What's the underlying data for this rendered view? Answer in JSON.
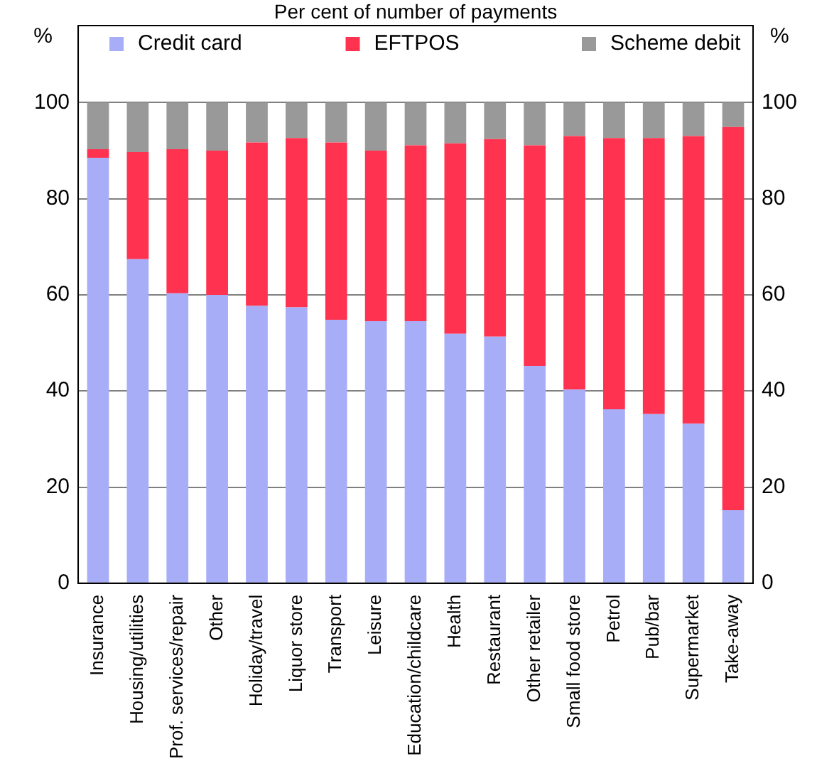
{
  "chart_data": {
    "type": "bar",
    "title": "Per cent of number of payments",
    "ylabel": "%",
    "y2label": "%",
    "stacked": true,
    "grid": "y",
    "legend": "top",
    "categories": [
      "Insurance",
      "Housing/utilities",
      "Prof. services/repair",
      "Other",
      "Holiday/travel",
      "Liquor store",
      "Transport",
      "Leisure",
      "Education/childcare",
      "Health",
      "Restaurant",
      "Other retailer",
      "Small food store",
      "Petrol",
      "Pub/bar",
      "Supermarket",
      "Take-away"
    ],
    "series": [
      {
        "name": "Credit card",
        "color": "#a8adf7",
        "values": [
          88.5,
          67.4,
          60.3,
          60,
          57.7,
          57.4,
          54.8,
          54.5,
          54.5,
          51.9,
          51.3,
          45.2,
          40.3,
          36.2,
          35.2,
          33.2,
          15.2
        ]
      },
      {
        "name": "EFTPOS",
        "color": "#ff334f",
        "values": [
          1.8,
          22.3,
          30,
          30,
          34,
          35.2,
          36.9,
          35.5,
          36.6,
          39.6,
          41.1,
          45.9,
          52.7,
          56.4,
          57.4,
          59.8,
          79.7
        ]
      },
      {
        "name": "Scheme debit",
        "color": "#999999",
        "values": [
          9.7,
          10.3,
          9.7,
          10,
          8.3,
          7.4,
          8.3,
          10,
          8.9,
          8.5,
          7.6,
          8.9,
          7,
          7.4,
          7.4,
          7,
          5.1
        ]
      }
    ],
    "ylim": [
      0,
      116
    ],
    "yticks": [
      0,
      20,
      40,
      60,
      80,
      100
    ],
    "y2lim": [
      0,
      116
    ],
    "y2ticks": [
      0,
      20,
      40,
      60,
      80,
      100
    ]
  }
}
